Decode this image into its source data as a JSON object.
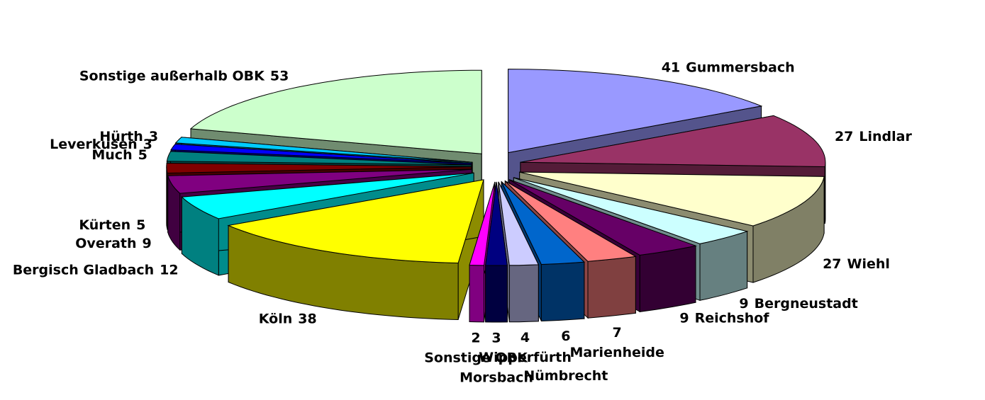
{
  "chart_data": {
    "type": "pie3d",
    "categories": [
      "Gummersbach",
      "Lindlar",
      "Wiehl",
      "Bergneustadt",
      "Reichshof",
      "Marienheide",
      "Nümbrecht",
      "Wipperfürth",
      "Morsbach",
      "Sonstige OBK",
      "Köln",
      "Bergisch Gladbach",
      "Overath",
      "Kürten",
      "Much",
      "Leverkusen",
      "Hürth",
      "Sonstige außerhalb OBK"
    ],
    "values": [
      41,
      27,
      27,
      9,
      9,
      7,
      6,
      4,
      3,
      2,
      38,
      12,
      9,
      5,
      5,
      3,
      3,
      53
    ],
    "colors": [
      "#9999ff",
      "#993366",
      "#ffffcc",
      "#ccffff",
      "#660066",
      "#ff8080",
      "#0066cc",
      "#ccccff",
      "#000080",
      "#ff00ff",
      "#ffff00",
      "#00ffff",
      "#800080",
      "#800000",
      "#008080",
      "#0000ff",
      "#00ccff",
      "#ccffcc"
    ]
  }
}
